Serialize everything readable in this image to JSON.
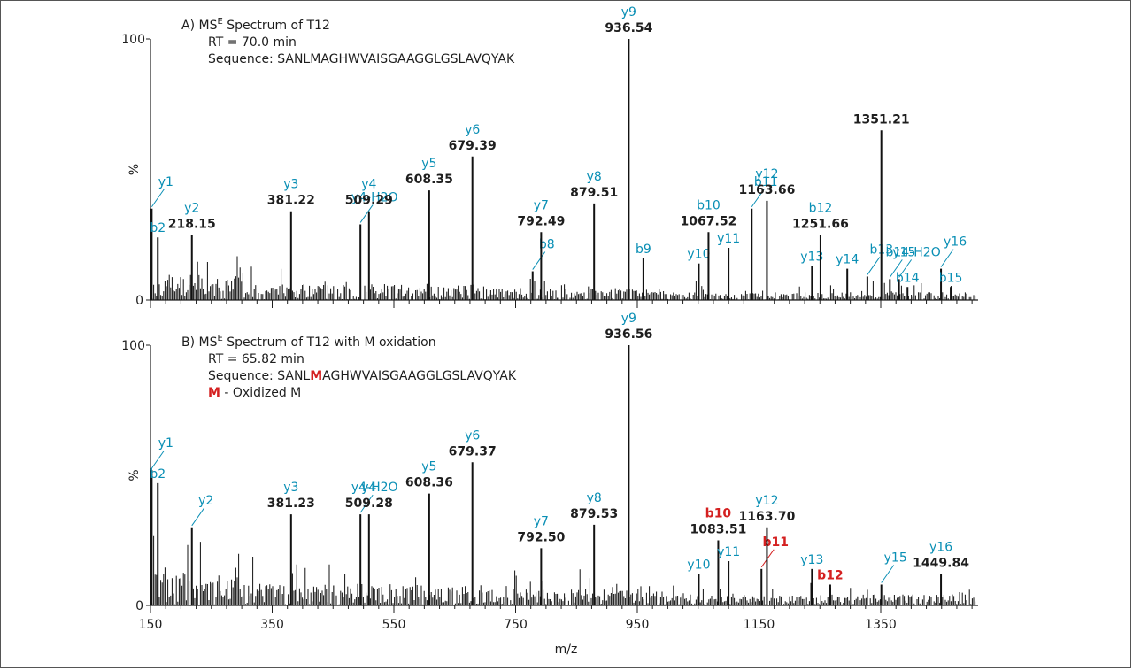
{
  "colors": {
    "ion": "#0a8fb5",
    "mass": "#1e1e1e",
    "oxidized": "#d42020",
    "trace": "#111111"
  },
  "chart_data": [
    {
      "type": "bar",
      "panel": "A",
      "title": "A) MS",
      "title_sup": "E",
      "title_tail": " Spectrum of T12",
      "rt": "RT = 70.0 min",
      "sequence_prefix": "Sequence: SANL",
      "sequence_mod": "M",
      "sequence_rest": "AGHWVAISGAAGGLGSLAVQYAK",
      "legend_line": "",
      "ylabel": "%",
      "ylim": [
        0,
        100
      ],
      "yticks": [
        "100",
        "0"
      ],
      "xlim": [
        150,
        1510
      ],
      "peaks": [
        {
          "mz": 152,
          "h": 35,
          "ion": "y1",
          "mass": "",
          "lead": true
        },
        {
          "mz": 162,
          "h": 24,
          "ion": "b2",
          "mass": ""
        },
        {
          "mz": 218,
          "h": 25,
          "ion": "y2",
          "mass": "218.15"
        },
        {
          "mz": 381,
          "h": 34,
          "ion": "y3",
          "mass": "381.22"
        },
        {
          "mz": 495,
          "h": 29,
          "ion": "y4-H2O",
          "mass": "",
          "lead": true
        },
        {
          "mz": 509,
          "h": 34,
          "ion": "y4",
          "mass": "509.29"
        },
        {
          "mz": 608,
          "h": 42,
          "ion": "y5",
          "mass": "608.35"
        },
        {
          "mz": 679,
          "h": 55,
          "ion": "y6",
          "mass": "679.39"
        },
        {
          "mz": 778,
          "h": 11,
          "ion": "b8",
          "mass": "",
          "lead": true
        },
        {
          "mz": 792,
          "h": 26,
          "ion": "y7",
          "mass": "792.49"
        },
        {
          "mz": 879,
          "h": 37,
          "ion": "y8",
          "mass": "879.51"
        },
        {
          "mz": 936,
          "h": 100,
          "ion": "y9",
          "mass": "936.54"
        },
        {
          "mz": 960,
          "h": 16,
          "ion": "b9",
          "mass": ""
        },
        {
          "mz": 1051,
          "h": 14,
          "ion": "y10",
          "mass": ""
        },
        {
          "mz": 1067,
          "h": 26,
          "ion": "b10",
          "mass": "1067.52"
        },
        {
          "mz": 1100,
          "h": 20,
          "ion": "y11",
          "mass": ""
        },
        {
          "mz": 1138,
          "h": 35,
          "ion": "b11",
          "mass": "",
          "lead": true
        },
        {
          "mz": 1163,
          "h": 38,
          "ion": "y12",
          "mass": "1163.66"
        },
        {
          "mz": 1237,
          "h": 13,
          "ion": "y13",
          "mass": ""
        },
        {
          "mz": 1251,
          "h": 25,
          "ion": "b12",
          "mass": "1251.66"
        },
        {
          "mz": 1295,
          "h": 12,
          "ion": "y14",
          "mass": ""
        },
        {
          "mz": 1328,
          "h": 9,
          "ion": "b13",
          "mass": "",
          "lead": true
        },
        {
          "mz": 1351,
          "h": 65,
          "ion": "",
          "mass": "1351.21"
        },
        {
          "mz": 1365,
          "h": 8,
          "ion": "y15",
          "mass": "",
          "lead": true
        },
        {
          "mz": 1380,
          "h": 8,
          "ion": "b14-H2O",
          "mass": "",
          "lead": true
        },
        {
          "mz": 1394,
          "h": 5,
          "ion": "b14",
          "mass": ""
        },
        {
          "mz": 1449,
          "h": 12,
          "ion": "y16",
          "mass": "",
          "lead": true
        },
        {
          "mz": 1465,
          "h": 5,
          "ion": "b15",
          "mass": ""
        }
      ]
    },
    {
      "type": "bar",
      "panel": "B",
      "title": "B) MS",
      "title_sup": "E",
      "title_tail": " Spectrum of T12 with M oxidation",
      "rt": "RT = 65.82 min",
      "sequence_prefix": "Sequence: SANL",
      "sequence_mod": "M",
      "sequence_rest": "AGHWVAISGAAGGLGSLAVQYAK",
      "legend_mod": "M",
      "legend_line": " - Oxidized M",
      "ylabel": "%",
      "ylim": [
        0,
        100
      ],
      "yticks": [
        "100",
        "0"
      ],
      "xlim": [
        150,
        1510
      ],
      "xticks": [
        "150",
        "350",
        "550",
        "750",
        "950",
        "1150",
        "1350"
      ],
      "xlabel": "m/z",
      "peaks": [
        {
          "mz": 152,
          "h": 52,
          "ion": "y1",
          "mass": "",
          "lead": true
        },
        {
          "mz": 162,
          "h": 47,
          "ion": "b2",
          "mass": ""
        },
        {
          "mz": 218,
          "h": 30,
          "ion": "y2",
          "mass": "",
          "lead": true
        },
        {
          "mz": 381,
          "h": 35,
          "ion": "y3",
          "mass": "381.23"
        },
        {
          "mz": 495,
          "h": 35,
          "ion": "y4-H2O",
          "mass": "",
          "lead": true
        },
        {
          "mz": 509,
          "h": 35,
          "ion": "y4",
          "mass": "509.28"
        },
        {
          "mz": 608,
          "h": 43,
          "ion": "y5",
          "mass": "608.36"
        },
        {
          "mz": 679,
          "h": 55,
          "ion": "y6",
          "mass": "679.37"
        },
        {
          "mz": 792,
          "h": 22,
          "ion": "y7",
          "mass": "792.50"
        },
        {
          "mz": 879,
          "h": 31,
          "ion": "y8",
          "mass": "879.53"
        },
        {
          "mz": 936,
          "h": 100,
          "ion": "y9",
          "mass": "936.56"
        },
        {
          "mz": 1051,
          "h": 12,
          "ion": "y10",
          "mass": ""
        },
        {
          "mz": 1083,
          "h": 25,
          "ion": "b10",
          "mass": "1083.51",
          "red": true
        },
        {
          "mz": 1100,
          "h": 17,
          "ion": "y11",
          "mass": ""
        },
        {
          "mz": 1154,
          "h": 14,
          "ion": "b11",
          "mass": "",
          "red": true,
          "lead": true
        },
        {
          "mz": 1163,
          "h": 30,
          "ion": "y12",
          "mass": "1163.70"
        },
        {
          "mz": 1237,
          "h": 14,
          "ion": "y13",
          "mass": ""
        },
        {
          "mz": 1267,
          "h": 8,
          "ion": "b12",
          "mass": "",
          "red": true
        },
        {
          "mz": 1351,
          "h": 8,
          "ion": "y15",
          "mass": "",
          "lead": true
        },
        {
          "mz": 1449,
          "h": 12,
          "ion": "y16",
          "mass": "1449.84"
        }
      ]
    }
  ]
}
